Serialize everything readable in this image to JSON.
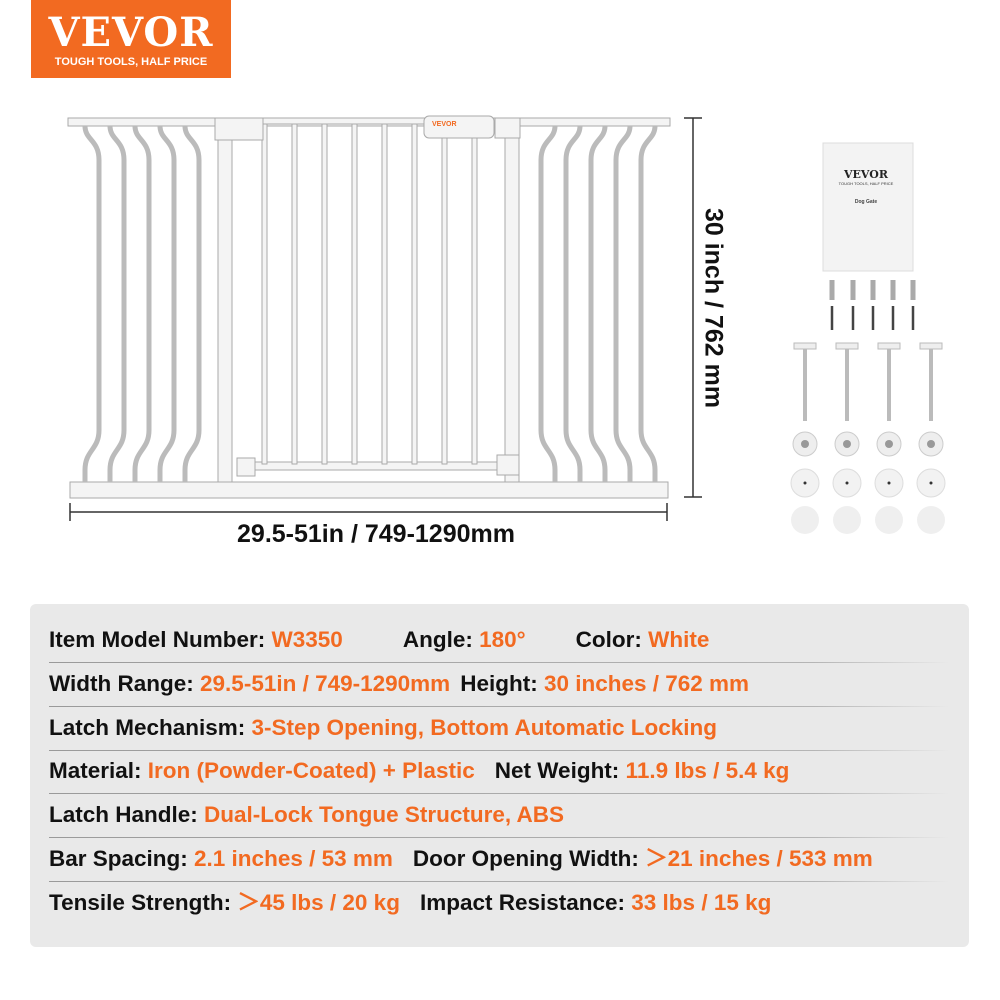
{
  "logo": {
    "brand": "VEVOR",
    "tagline": "TOUGH TOOLS, HALF PRICE"
  },
  "colors": {
    "accent": "#f26a21",
    "panel": "#e9e9e9",
    "text": "#111111"
  },
  "dimensions": {
    "height": "30 inch / 762 mm",
    "width": "29.5-51in / 749-1290mm"
  },
  "manual": {
    "brand": "VEVOR",
    "tagline": "TOUGH TOOLS, HALF PRICE",
    "title": "Dog Gate"
  },
  "gate_logo": "VEVOR",
  "specs": [
    [
      {
        "label": "Item Model Number: ",
        "value": "W3350"
      },
      {
        "label": "Angle: ",
        "value": "180°"
      },
      {
        "label": "Color: ",
        "value": "White"
      }
    ],
    [
      {
        "label": "Width Range: ",
        "value": "29.5-51in / 749-1290mm"
      },
      {
        "label": "Height: ",
        "value": "30 inches / 762 mm"
      }
    ],
    [
      {
        "label": "Latch Mechanism: ",
        "value": "3-Step Opening, Bottom Automatic Locking"
      }
    ],
    [
      {
        "label": "Material: ",
        "value": "Iron (Powder-Coated) + Plastic"
      },
      {
        "label": "Net Weight: ",
        "value": "11.9 lbs / 5.4 kg"
      }
    ],
    [
      {
        "label": "Latch Handle: ",
        "value": "Dual-Lock Tongue Structure, ABS"
      }
    ],
    [
      {
        "label": "Bar Spacing: ",
        "value": "2.1 inches / 53 mm"
      },
      {
        "label": "Door Opening Width: ",
        "value": "＞21 inches / 533 mm"
      }
    ],
    [
      {
        "label": "Tensile Strength: ",
        "value": "＞45 lbs / 20 kg"
      },
      {
        "label": "Impact Resistance: ",
        "value": "33 lbs / 15 kg"
      }
    ]
  ]
}
